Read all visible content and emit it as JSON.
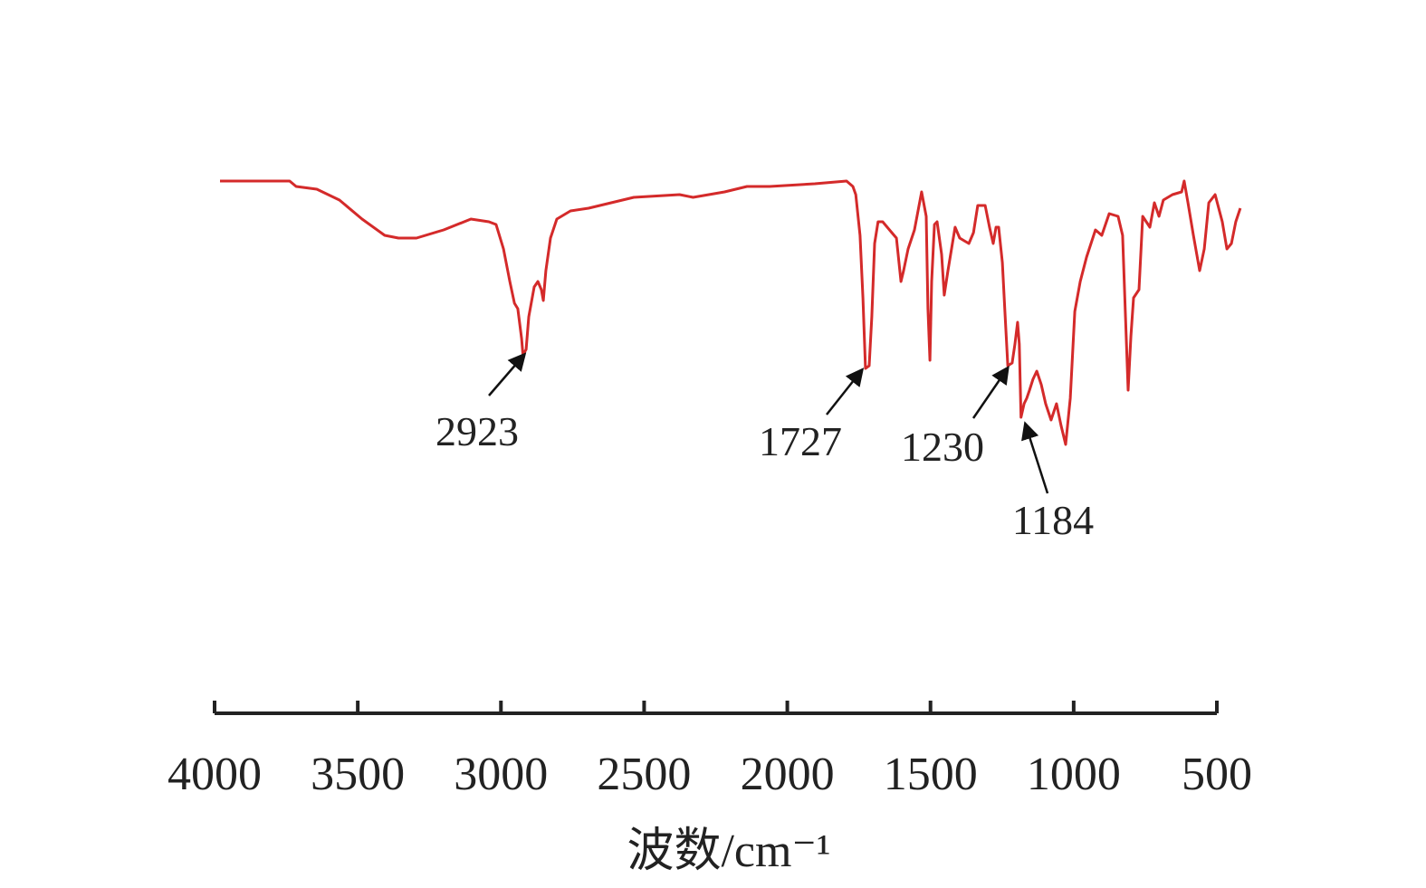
{
  "chart_data": {
    "type": "line",
    "title": "",
    "xlabel": "波数/cm⁻¹",
    "ylabel": "",
    "xlim": [
      4000,
      500
    ],
    "x_reversed": true,
    "y_axis_shown": false,
    "y_units": "relative (no axis printed)",
    "grid": false,
    "xticks": [
      4000,
      3500,
      3000,
      2500,
      2000,
      1500,
      1000,
      500
    ],
    "xtick_labels": [
      "4000",
      "3500",
      "3000",
      "2500",
      "2000",
      "1500",
      "1000",
      "500"
    ],
    "series": [
      {
        "color": "#d42a2a",
        "points": [
          [
            3981,
            100
          ],
          [
            3738,
            100
          ],
          [
            3715,
            98
          ],
          [
            3643,
            97
          ],
          [
            3564,
            93
          ],
          [
            3485,
            86
          ],
          [
            3406,
            80
          ],
          [
            3358,
            79
          ],
          [
            3295,
            79
          ],
          [
            3200,
            82
          ],
          [
            3105,
            86
          ],
          [
            3042,
            85
          ],
          [
            3017,
            84
          ],
          [
            2991,
            75
          ],
          [
            2969,
            63
          ],
          [
            2953,
            55
          ],
          [
            2941,
            53
          ],
          [
            2928,
            42
          ],
          [
            2923,
            36
          ],
          [
            2912,
            38
          ],
          [
            2903,
            50
          ],
          [
            2884,
            61
          ],
          [
            2871,
            63
          ],
          [
            2859,
            60
          ],
          [
            2852,
            56
          ],
          [
            2843,
            67
          ],
          [
            2827,
            79
          ],
          [
            2805,
            86
          ],
          [
            2757,
            89
          ],
          [
            2694,
            90
          ],
          [
            2536,
            94
          ],
          [
            2376,
            95
          ],
          [
            2329,
            94
          ],
          [
            2219,
            96
          ],
          [
            2141,
            98
          ],
          [
            2062,
            98
          ],
          [
            1904,
            99
          ],
          [
            1793,
            100
          ],
          [
            1771,
            98
          ],
          [
            1761,
            95
          ],
          [
            1746,
            80
          ],
          [
            1736,
            57
          ],
          [
            1727,
            31
          ],
          [
            1714,
            32
          ],
          [
            1705,
            50
          ],
          [
            1695,
            77
          ],
          [
            1683,
            85
          ],
          [
            1667,
            85
          ],
          [
            1635,
            81
          ],
          [
            1619,
            79
          ],
          [
            1603,
            63
          ],
          [
            1594,
            67
          ],
          [
            1578,
            75
          ],
          [
            1556,
            82
          ],
          [
            1531,
            96
          ],
          [
            1515,
            87
          ],
          [
            1509,
            53
          ],
          [
            1502,
            34
          ],
          [
            1496,
            63
          ],
          [
            1486,
            84
          ],
          [
            1477,
            85
          ],
          [
            1461,
            73
          ],
          [
            1452,
            58
          ],
          [
            1439,
            67
          ],
          [
            1414,
            83
          ],
          [
            1398,
            79
          ],
          [
            1382,
            78
          ],
          [
            1366,
            77
          ],
          [
            1350,
            81
          ],
          [
            1335,
            91
          ],
          [
            1309,
            91
          ],
          [
            1294,
            83
          ],
          [
            1281,
            77
          ],
          [
            1271,
            83
          ],
          [
            1262,
            83
          ],
          [
            1249,
            70
          ],
          [
            1240,
            52
          ],
          [
            1230,
            32
          ],
          [
            1215,
            33
          ],
          [
            1205,
            40
          ],
          [
            1196,
            48
          ],
          [
            1190,
            40
          ],
          [
            1184,
            13
          ],
          [
            1173,
            18
          ],
          [
            1164,
            20
          ],
          [
            1154,
            23
          ],
          [
            1142,
            27
          ],
          [
            1129,
            30
          ],
          [
            1113,
            25
          ],
          [
            1098,
            18
          ],
          [
            1079,
            12
          ],
          [
            1060,
            18
          ],
          [
            1044,
            10
          ],
          [
            1028,
            3
          ],
          [
            1012,
            20
          ],
          [
            996,
            52
          ],
          [
            977,
            63
          ],
          [
            955,
            72
          ],
          [
            924,
            82
          ],
          [
            902,
            80
          ],
          [
            876,
            88
          ],
          [
            845,
            87
          ],
          [
            829,
            80
          ],
          [
            819,
            50
          ],
          [
            810,
            23
          ],
          [
            800,
            43
          ],
          [
            791,
            57
          ],
          [
            772,
            60
          ],
          [
            759,
            87
          ],
          [
            734,
            83
          ],
          [
            718,
            92
          ],
          [
            702,
            87
          ],
          [
            687,
            93
          ],
          [
            655,
            95
          ],
          [
            623,
            96
          ],
          [
            614,
            100
          ],
          [
            601,
            92
          ],
          [
            582,
            80
          ],
          [
            560,
            67
          ],
          [
            544,
            75
          ],
          [
            528,
            92
          ],
          [
            506,
            95
          ],
          [
            481,
            85
          ],
          [
            465,
            75
          ],
          [
            449,
            77
          ],
          [
            434,
            85
          ],
          [
            418,
            90
          ]
        ]
      }
    ],
    "annotations": [
      {
        "text": "2923",
        "x": 2923
      },
      {
        "text": "1727",
        "x": 1727
      },
      {
        "text": "1230",
        "x": 1230
      },
      {
        "text": "1184",
        "x": 1184
      }
    ]
  }
}
